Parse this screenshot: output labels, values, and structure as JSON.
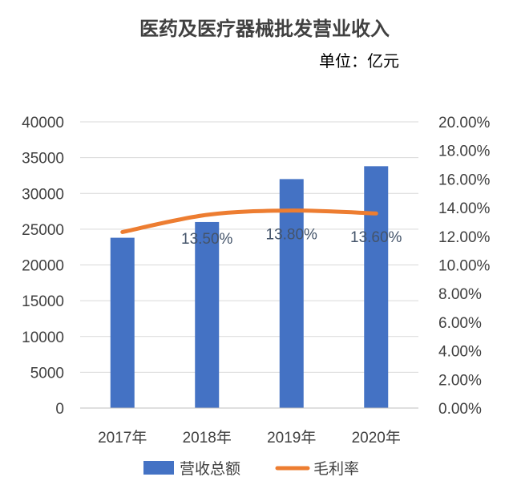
{
  "chart_data": {
    "type": "bar",
    "title": "医药及医疗器械批发营业收入",
    "unit": "单位：亿元",
    "categories": [
      "2017年",
      "2018年",
      "2019年",
      "2020年"
    ],
    "series": [
      {
        "name": "营收总额",
        "type": "bar",
        "axis": "left",
        "color": "#4472C4",
        "values": [
          23800,
          26000,
          32000,
          33800
        ]
      },
      {
        "name": "毛利率",
        "type": "line",
        "axis": "right",
        "color": "#ED7D31",
        "values": [
          12.3,
          13.5,
          13.8,
          13.6
        ]
      }
    ],
    "data_labels": [
      {
        "index": 1,
        "text": "13.50%"
      },
      {
        "index": 2,
        "text": "13.80%"
      },
      {
        "index": 3,
        "text": "13.60%"
      }
    ],
    "ylim_left": [
      0,
      40000
    ],
    "ylim_right": [
      0,
      20
    ],
    "yticks_left": [
      "0",
      "5000",
      "10000",
      "15000",
      "20000",
      "25000",
      "30000",
      "35000",
      "40000"
    ],
    "yticks_right": [
      "0.00%",
      "2.00%",
      "4.00%",
      "6.00%",
      "8.00%",
      "10.00%",
      "12.00%",
      "14.00%",
      "16.00%",
      "18.00%",
      "20.00%"
    ],
    "grid": true,
    "legend_position": "bottom"
  }
}
